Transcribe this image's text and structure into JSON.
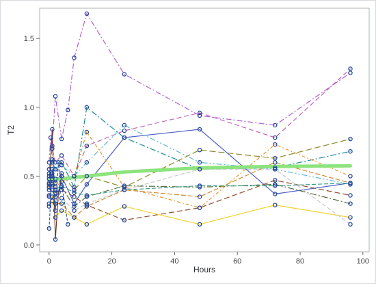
{
  "chart_data": {
    "type": "line",
    "xlabel": "Hours",
    "ylabel": "T2",
    "xlim": [
      -3,
      102
    ],
    "ylim": [
      -0.05,
      1.72
    ],
    "xticks": [
      0,
      20,
      40,
      60,
      80,
      100
    ],
    "yticks": [
      0.0,
      0.5,
      1.0,
      1.5
    ],
    "tick_labels_y": [
      "0.0",
      "0.5",
      "1.0",
      "1.5"
    ],
    "tick_labels_x": [
      "0",
      "20",
      "40",
      "60",
      "80",
      "100"
    ],
    "grid": false,
    "legend": "none",
    "marker_color": "#24469b",
    "series": [
      {
        "color": "#b05fd6",
        "dash": "8,3,2,3",
        "x": [
          0,
          0.5,
          1,
          2,
          4,
          6,
          8,
          12,
          24,
          48,
          72,
          96
        ],
        "y": [
          0.6,
          0.78,
          0.72,
          1.08,
          0.77,
          0.98,
          1.36,
          1.68,
          1.24,
          0.94,
          0.87,
          1.25
        ]
      },
      {
        "color": "#c064b9",
        "dash": "7,4",
        "x": [
          0,
          1,
          2,
          4,
          8,
          12,
          24,
          48,
          72,
          96
        ],
        "y": [
          0.55,
          0.7,
          0.6,
          0.65,
          0.5,
          0.72,
          0.83,
          0.96,
          0.78,
          1.28
        ]
      },
      {
        "color": "#1d8a92",
        "dash": "9,3,2,3",
        "x": [
          0,
          1,
          2,
          4,
          8,
          12,
          24,
          48,
          72,
          96
        ],
        "y": [
          0.5,
          0.62,
          0.55,
          0.6,
          0.42,
          1.0,
          0.78,
          0.55,
          0.56,
          0.68
        ]
      },
      {
        "color": "#4a5fc4",
        "dash": "",
        "x": [
          0,
          1,
          2,
          4,
          8,
          12,
          24,
          48,
          72,
          96
        ],
        "y": [
          0.45,
          0.52,
          0.48,
          0.5,
          0.3,
          0.44,
          0.78,
          0.84,
          0.37,
          0.45
        ]
      },
      {
        "color": "#5bb8d8",
        "dash": "8,3,2,3,2,3",
        "x": [
          0,
          1,
          2,
          4,
          8,
          12,
          24,
          48,
          72,
          96
        ],
        "y": [
          0.52,
          0.6,
          0.55,
          0.58,
          0.5,
          0.6,
          0.87,
          0.6,
          0.55,
          0.44
        ]
      },
      {
        "color": "#8a8a2e",
        "dash": "9,4",
        "x": [
          0,
          1,
          2,
          4,
          8,
          12,
          24,
          48,
          72,
          96
        ],
        "y": [
          0.48,
          0.5,
          0.45,
          0.52,
          0.4,
          0.5,
          0.42,
          0.69,
          0.63,
          0.77
        ]
      },
      {
        "color": "#e8962c",
        "dash": "5,3,2,3",
        "x": [
          0,
          1,
          2,
          4,
          8,
          12,
          24,
          48,
          72,
          96
        ],
        "y": [
          0.44,
          0.48,
          0.42,
          0.46,
          0.5,
          0.82,
          0.42,
          0.27,
          0.73,
          0.5
        ]
      },
      {
        "color": "#8e4b2d",
        "dash": "8,4",
        "x": [
          0,
          1,
          2,
          4,
          8,
          12,
          24,
          48,
          72,
          96
        ],
        "y": [
          0.4,
          0.45,
          0.38,
          0.4,
          0.35,
          0.29,
          0.18,
          0.27,
          0.47,
          0.36
        ]
      },
      {
        "color": "#4d6e37",
        "dash": "9,3,2,3",
        "x": [
          0,
          1,
          2,
          4,
          8,
          12,
          24,
          48,
          72,
          96
        ],
        "y": [
          0.36,
          0.4,
          0.35,
          0.42,
          0.28,
          0.35,
          0.43,
          0.42,
          0.44,
          0.3
        ]
      },
      {
        "color": "#3a9e8a",
        "dash": "6,3",
        "x": [
          0,
          1,
          2,
          4,
          8,
          12,
          24,
          48,
          72,
          96
        ],
        "y": [
          0.42,
          0.44,
          0.4,
          0.43,
          0.38,
          0.36,
          0.4,
          0.43,
          0.43,
          0.45
        ]
      },
      {
        "color": "#f2d22c",
        "dash": "",
        "x": [
          0,
          1,
          2,
          4,
          8,
          12,
          24,
          48,
          72,
          96
        ],
        "y": [
          0.3,
          0.32,
          0.2,
          0.25,
          0.2,
          0.15,
          0.28,
          0.15,
          0.29,
          0.2
        ]
      },
      {
        "color": "#c7c7cf",
        "dash": "6,3",
        "x": [
          0,
          1,
          2,
          4,
          8,
          12,
          24,
          48,
          72,
          96
        ],
        "y": [
          0.35,
          0.4,
          0.3,
          0.34,
          0.25,
          0.3,
          0.4,
          0.55,
          0.55,
          0.15
        ]
      },
      {
        "color": "#d08a2f",
        "dash": "7,3",
        "x": [
          0,
          1,
          2,
          4,
          8,
          12,
          24,
          48,
          72,
          96
        ],
        "y": [
          0.28,
          0.35,
          0.3,
          0.3,
          0.2,
          0.28,
          0.4,
          0.35,
          0.6,
          0.45
        ]
      },
      {
        "color": "#6a3e2a",
        "dash": "",
        "x": [
          0,
          1,
          2,
          3,
          4
        ],
        "y": [
          0.42,
          0.84,
          0.04,
          0.38,
          0.5
        ]
      },
      {
        "color": "#2d5e9b",
        "dash": "4,2",
        "x": [
          0,
          1,
          2,
          3,
          6
        ],
        "y": [
          0.12,
          0.55,
          0.25,
          0.6,
          0.15
        ]
      }
    ],
    "fit": {
      "color": "#8de37d",
      "x": [
        0,
        12,
        24,
        48,
        72,
        96
      ],
      "y": [
        0.47,
        0.5,
        0.53,
        0.56,
        0.57,
        0.575
      ]
    }
  }
}
